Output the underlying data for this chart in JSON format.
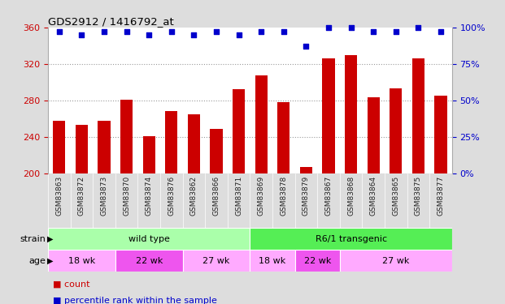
{
  "title": "GDS2912 / 1416792_at",
  "samples": [
    "GSM83863",
    "GSM83872",
    "GSM83873",
    "GSM83870",
    "GSM83874",
    "GSM83876",
    "GSM83862",
    "GSM83866",
    "GSM83871",
    "GSM83869",
    "GSM83878",
    "GSM83879",
    "GSM83867",
    "GSM83868",
    "GSM83864",
    "GSM83865",
    "GSM83875",
    "GSM83877"
  ],
  "counts": [
    258,
    253,
    258,
    281,
    241,
    268,
    265,
    249,
    292,
    307,
    278,
    207,
    326,
    330,
    283,
    293,
    326,
    285
  ],
  "percentile": [
    97,
    95,
    97,
    97,
    95,
    97,
    95,
    97,
    95,
    97,
    97,
    87,
    100,
    100,
    97,
    97,
    100,
    97
  ],
  "ylim_left": [
    200,
    360
  ],
  "ylim_right": [
    0,
    100
  ],
  "yticks_left": [
    200,
    240,
    280,
    320,
    360
  ],
  "yticks_right": [
    0,
    25,
    50,
    75,
    100
  ],
  "bar_color": "#cc0000",
  "dot_color": "#0000cc",
  "grid_color": "#999999",
  "axis_label_color_left": "#cc0000",
  "axis_label_color_right": "#0000cc",
  "strain_groups": [
    {
      "label": "wild type",
      "start": 0,
      "end": 9,
      "color": "#aaffaa"
    },
    {
      "label": "R6/1 transgenic",
      "start": 9,
      "end": 18,
      "color": "#55ee55"
    }
  ],
  "age_groups": [
    {
      "label": "18 wk",
      "start": 0,
      "end": 3,
      "color": "#ffaaff"
    },
    {
      "label": "22 wk",
      "start": 3,
      "end": 6,
      "color": "#ee55ee"
    },
    {
      "label": "27 wk",
      "start": 6,
      "end": 9,
      "color": "#ffaaff"
    },
    {
      "label": "18 wk",
      "start": 9,
      "end": 11,
      "color": "#ffaaff"
    },
    {
      "label": "22 wk",
      "start": 11,
      "end": 13,
      "color": "#ee55ee"
    },
    {
      "label": "27 wk",
      "start": 13,
      "end": 18,
      "color": "#ffaaff"
    }
  ],
  "background_color": "#dddddd",
  "plot_bg_color": "#ffffff",
  "sample_band_color": "#cccccc",
  "tick_label_color": "#222222"
}
